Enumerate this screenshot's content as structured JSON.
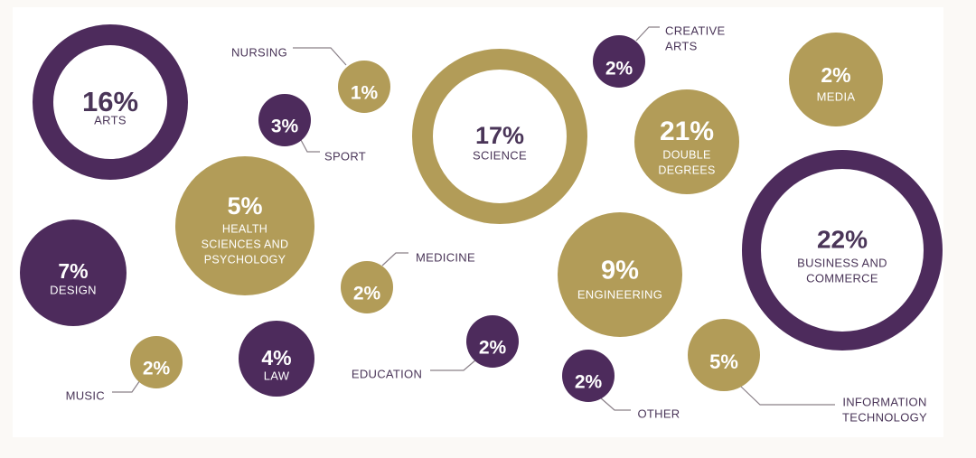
{
  "colors": {
    "purple": "#4d2b5c",
    "gold": "#b29c58",
    "label_dark": "#4a3558",
    "background": "#fbf9f6",
    "panel": "#ffffff"
  },
  "chart_data": {
    "type": "bubble",
    "title": "",
    "unit": "%",
    "series": [
      {
        "category": "ARTS",
        "value": 16,
        "display": "16%",
        "color": "purple",
        "style": "ring",
        "label_position": "inside"
      },
      {
        "category": "NURSING",
        "value": 1,
        "display": "1%",
        "color": "gold",
        "style": "solid",
        "label_position": "outside"
      },
      {
        "category": "SPORT",
        "value": 3,
        "display": "3%",
        "color": "purple",
        "style": "solid",
        "label_position": "outside"
      },
      {
        "category": "HEALTH SCIENCES AND PSYCHOLOGY",
        "value": 5,
        "display": "5%",
        "color": "gold",
        "style": "solid",
        "label_position": "inside"
      },
      {
        "category": "SCIENCE",
        "value": 17,
        "display": "17%",
        "color": "gold",
        "style": "ring",
        "label_position": "inside"
      },
      {
        "category": "CREATIVE ARTS",
        "value": 2,
        "display": "2%",
        "color": "purple",
        "style": "solid",
        "label_position": "outside"
      },
      {
        "category": "DOUBLE DEGREES",
        "value": 21,
        "display": "21%",
        "color": "gold",
        "style": "solid",
        "label_position": "inside"
      },
      {
        "category": "MEDIA",
        "value": 2,
        "display": "2%",
        "color": "gold",
        "style": "solid",
        "label_position": "inside"
      },
      {
        "category": "DESIGN",
        "value": 7,
        "display": "7%",
        "color": "purple",
        "style": "solid",
        "label_position": "inside"
      },
      {
        "category": "MEDICINE",
        "value": 2,
        "display": "2%",
        "color": "gold",
        "style": "solid",
        "label_position": "outside"
      },
      {
        "category": "ENGINEERING",
        "value": 9,
        "display": "9%",
        "color": "gold",
        "style": "solid",
        "label_position": "inside"
      },
      {
        "category": "BUSINESS AND COMMERCE",
        "value": 22,
        "display": "22%",
        "color": "purple",
        "style": "ring",
        "label_position": "inside"
      },
      {
        "category": "MUSIC",
        "value": 2,
        "display": "2%",
        "color": "gold",
        "style": "solid",
        "label_position": "outside"
      },
      {
        "category": "LAW",
        "value": 4,
        "display": "4%",
        "color": "purple",
        "style": "solid",
        "label_position": "inside"
      },
      {
        "category": "EDUCATION",
        "value": 2,
        "display": "2%",
        "color": "purple",
        "style": "solid",
        "label_position": "outside"
      },
      {
        "category": "OTHER",
        "value": 2,
        "display": "2%",
        "color": "purple",
        "style": "solid",
        "label_position": "outside"
      },
      {
        "category": "INFORMATION TECHNOLOGY",
        "value": 5,
        "display": "5%",
        "color": "gold",
        "style": "solid",
        "label_position": "outside"
      }
    ]
  }
}
